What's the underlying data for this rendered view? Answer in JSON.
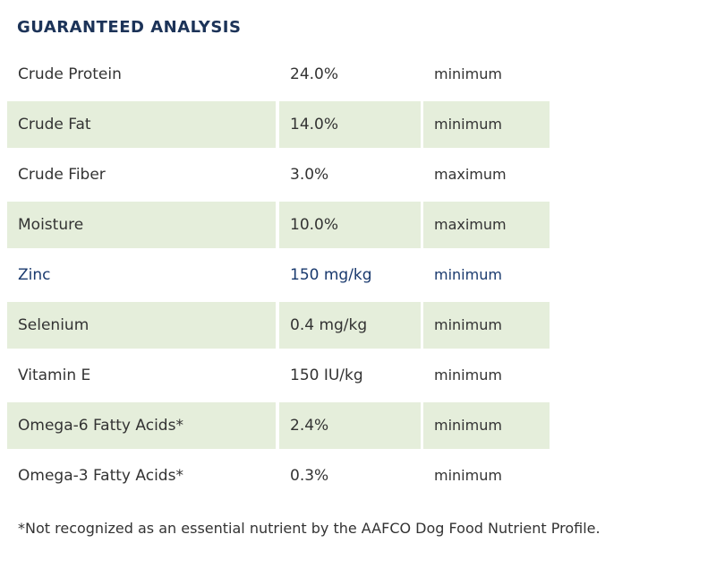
{
  "header": {
    "title": "GUARANTEED ANALYSIS"
  },
  "table": {
    "rows": [
      [
        "Crude Protein",
        "24.0%",
        "minimum"
      ],
      [
        "Crude Fat",
        "14.0%",
        "minimum"
      ],
      [
        "Crude Fiber",
        "3.0%",
        "maximum"
      ],
      [
        "Moisture",
        "10.0%",
        "maximum"
      ],
      [
        "Zinc",
        "150 mg/kg",
        "minimum"
      ],
      [
        "Selenium",
        "0.4 mg/kg",
        "minimum"
      ],
      [
        "Vitamin E",
        "150 IU/kg",
        "minimum"
      ],
      [
        "Omega-6 Fatty Acids*",
        "2.4%",
        "minimum"
      ],
      [
        "Omega-3 Fatty Acids*",
        "0.3%",
        "minimum"
      ]
    ]
  },
  "footnote": "*Not recognized as an essential nutrient by the AAFCO Dog Food Nutrient Profile."
}
